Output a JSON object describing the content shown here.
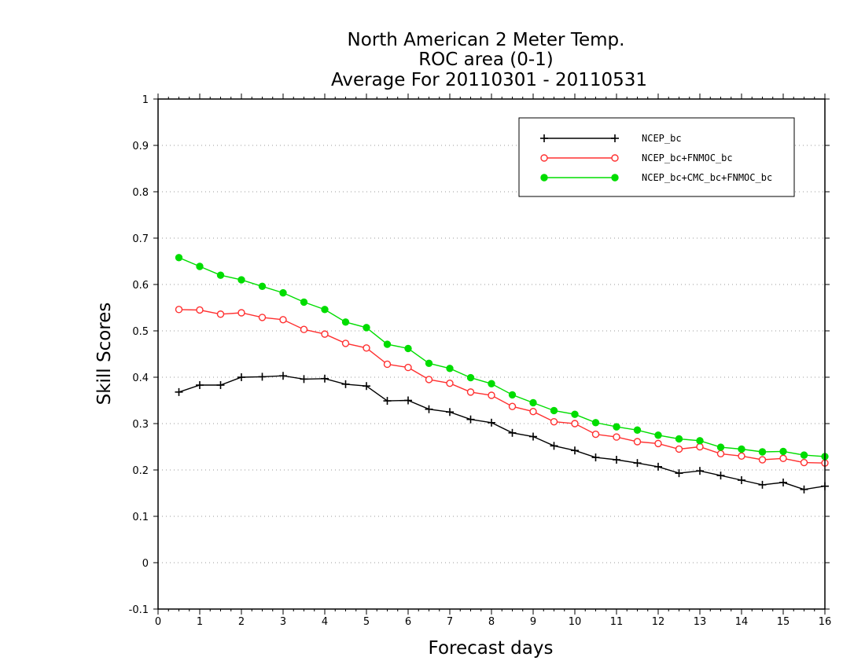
{
  "chart_data": {
    "type": "line",
    "title_lines": [
      "North American 2 Meter Temp.",
      "ROC area (0-1)",
      "Average For 20110301 - 20110531"
    ],
    "xlabel": "Forecast days",
    "ylabel": "Skill Scores",
    "xlim": [
      0,
      16
    ],
    "ylim": [
      -0.1,
      1
    ],
    "xticks": [
      0,
      1,
      2,
      3,
      4,
      5,
      6,
      7,
      8,
      9,
      10,
      11,
      12,
      13,
      14,
      15,
      16
    ],
    "yticks": [
      "-0.1",
      "0",
      "0.1",
      "0.2",
      "0.3",
      "0.4",
      "0.5",
      "0.6",
      "0.7",
      "0.8",
      "0.9",
      "1"
    ],
    "grid": true,
    "legend_position": "top-right",
    "x": [
      0.5,
      1,
      1.5,
      2,
      2.5,
      3,
      3.5,
      4,
      4.5,
      5,
      5.5,
      6,
      6.5,
      7,
      7.5,
      8,
      8.5,
      9,
      9.5,
      10,
      10.5,
      11,
      11.5,
      12,
      12.5,
      13,
      13.5,
      14,
      14.5,
      15,
      15.5,
      16
    ],
    "series": [
      {
        "name": "NCEP_bc",
        "color": "#000000",
        "marker": "plus",
        "values": [
          0.368,
          0.383,
          0.383,
          0.4,
          0.401,
          0.403,
          0.396,
          0.397,
          0.385,
          0.381,
          0.349,
          0.35,
          0.331,
          0.325,
          0.309,
          0.302,
          0.28,
          0.272,
          0.252,
          0.242,
          0.227,
          0.222,
          0.215,
          0.207,
          0.193,
          0.198,
          0.188,
          0.178,
          0.168,
          0.173,
          0.158,
          0.165
        ]
      },
      {
        "name": "NCEP_bc+FNMOC_bc",
        "color": "#ff3030",
        "marker": "open-circle",
        "values": [
          0.546,
          0.545,
          0.536,
          0.539,
          0.529,
          0.524,
          0.503,
          0.493,
          0.473,
          0.463,
          0.428,
          0.421,
          0.395,
          0.387,
          0.368,
          0.361,
          0.337,
          0.326,
          0.304,
          0.3,
          0.277,
          0.271,
          0.261,
          0.257,
          0.245,
          0.25,
          0.235,
          0.23,
          0.222,
          0.225,
          0.216,
          0.215
        ]
      },
      {
        "name": "NCEP_bc+CMC_bc+FNMOC_bc",
        "color": "#00dd00",
        "marker": "filled-circle",
        "values": [
          0.658,
          0.639,
          0.62,
          0.61,
          0.596,
          0.582,
          0.562,
          0.546,
          0.519,
          0.507,
          0.471,
          0.462,
          0.43,
          0.419,
          0.399,
          0.386,
          0.362,
          0.345,
          0.328,
          0.32,
          0.302,
          0.293,
          0.286,
          0.275,
          0.267,
          0.263,
          0.249,
          0.245,
          0.239,
          0.24,
          0.232,
          0.229
        ]
      }
    ]
  }
}
